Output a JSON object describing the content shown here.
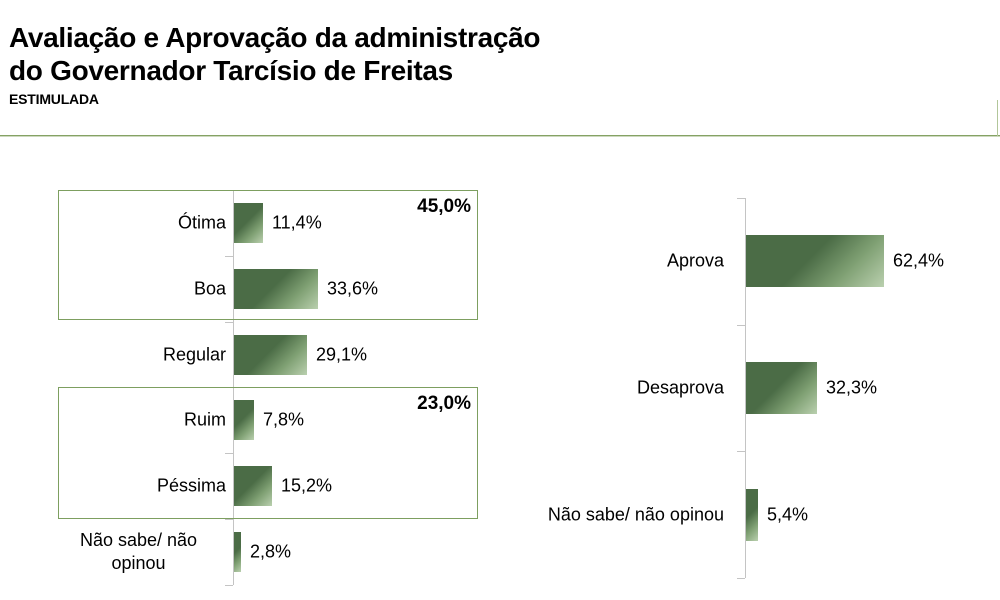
{
  "page": {
    "title_line1": "Avaliação e Aprovação da administração",
    "title_line2": "do Governador Tarcísio de Freitas",
    "subtitle": "ESTIMULADA"
  },
  "colors": {
    "bar_gradient_dark": "#4b6c46",
    "bar_gradient_light": "#bad0af",
    "group_box_border": "#7d9f60",
    "axis_line": "#c4c4c4",
    "header_divider": "#85a264",
    "text": "#000000"
  },
  "chart_data": [
    {
      "id": "evaluation",
      "type": "bar",
      "orientation": "horizontal",
      "categories": [
        "Ótima",
        "Boa",
        "Regular",
        "Ruim",
        "Péssima",
        "Não sabe/ não\nopinou"
      ],
      "values": [
        11.4,
        33.6,
        29.1,
        7.8,
        15.2,
        2.8
      ],
      "value_labels": [
        "11,4%",
        "33,6%",
        "29,1%",
        "7,8%",
        "15,2%",
        "2,8%"
      ],
      "grid": false,
      "legend": "none",
      "groups": [
        {
          "label": "45,0%",
          "covers": [
            "Ótima",
            "Boa"
          ]
        },
        {
          "label": "23,0%",
          "covers": [
            "Ruim",
            "Péssima"
          ]
        }
      ]
    },
    {
      "id": "approval",
      "type": "bar",
      "orientation": "horizontal",
      "categories": [
        "Aprova",
        "Desaprova",
        "Não sabe/ não opinou"
      ],
      "values": [
        62.4,
        32.3,
        5.4
      ],
      "value_labels": [
        "62,4%",
        "32,3%",
        "5,4%"
      ],
      "grid": false,
      "legend": "none",
      "groups": []
    }
  ]
}
